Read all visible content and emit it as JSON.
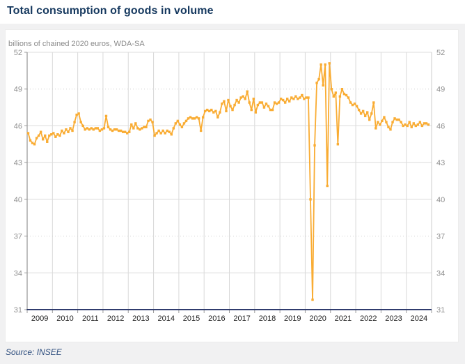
{
  "page": {
    "title": "Total consumption of goods in volume",
    "source_note": "Source: INSEE"
  },
  "colors": {
    "accent_line": "#f9ac33",
    "title_navy": "#16395f",
    "axis_navy": "#303c6e",
    "left_frame_gray": "#7f7f7f",
    "gridline_gray": "#dcdcdc",
    "tick_text_gray": "#8f8f8f",
    "background_gray": "#f1f1f2"
  },
  "chart_data": {
    "type": "line",
    "title": "Total consumption of goods in volume",
    "subtitle": "billions of chained 2020 euros, WDA-SA",
    "source": "Source: INSEE",
    "frequency": "monthly",
    "x_start": "2009-01",
    "x_end": "2024-11",
    "x_tick_labels": [
      "2009",
      "2010",
      "2011",
      "2012",
      "2013",
      "2014",
      "2015",
      "2016",
      "2017",
      "2018",
      "2019",
      "2020",
      "2021",
      "2022",
      "2023",
      "2024"
    ],
    "y_ticks": [
      31,
      34,
      37,
      40,
      43,
      46,
      49,
      52
    ],
    "ylim": [
      31,
      52
    ],
    "grid": true,
    "grid_dotted_levels": [
      49,
      37
    ],
    "legend_position": "none",
    "marker": "square",
    "series": [
      {
        "name": "Total consumption of goods in volume",
        "color": "#f9ac33",
        "values": [
          45.4,
          44.8,
          44.6,
          44.5,
          45.0,
          45.2,
          45.5,
          44.9,
          45.2,
          44.7,
          45.2,
          45.3,
          45.4,
          45.1,
          45.3,
          45.2,
          45.6,
          45.4,
          45.7,
          45.5,
          45.8,
          45.6,
          46.3,
          46.9,
          47.0,
          46.3,
          46.0,
          45.7,
          45.8,
          45.7,
          45.8,
          45.7,
          45.8,
          45.8,
          45.6,
          45.7,
          45.8,
          46.8,
          45.9,
          45.7,
          45.6,
          45.7,
          45.7,
          45.6,
          45.6,
          45.5,
          45.5,
          45.4,
          45.5,
          46.1,
          45.8,
          46.2,
          45.8,
          45.7,
          45.8,
          45.9,
          45.9,
          46.4,
          46.5,
          46.3,
          45.2,
          45.4,
          45.6,
          45.4,
          45.6,
          45.4,
          45.6,
          45.5,
          45.3,
          45.8,
          46.2,
          46.4,
          46.1,
          45.9,
          46.2,
          46.4,
          46.6,
          46.7,
          46.6,
          46.6,
          46.7,
          46.6,
          45.6,
          46.7,
          47.2,
          47.3,
          47.2,
          47.3,
          47.1,
          47.2,
          46.7,
          47.1,
          47.8,
          48.0,
          47.2,
          48.1,
          47.6,
          47.3,
          47.7,
          48.1,
          47.9,
          48.3,
          48.4,
          48.2,
          48.8,
          47.9,
          47.3,
          48.2,
          47.1,
          47.7,
          47.9,
          47.9,
          47.5,
          47.8,
          47.6,
          47.3,
          47.3,
          47.9,
          47.8,
          47.9,
          48.2,
          48.1,
          47.9,
          48.2,
          48.0,
          48.3,
          48.2,
          48.4,
          48.2,
          48.3,
          48.5,
          48.2,
          48.3,
          48.3,
          40.0,
          31.8,
          44.4,
          49.5,
          49.8,
          51.0,
          49.3,
          51.0,
          41.1,
          51.1,
          49.0,
          48.4,
          48.7,
          44.5,
          48.4,
          49.0,
          48.6,
          48.5,
          48.3,
          47.9,
          47.7,
          47.8,
          47.6,
          47.3,
          47.0,
          47.2,
          46.8,
          47.1,
          46.5,
          47.0,
          47.9,
          45.8,
          46.3,
          46.1,
          46.4,
          46.7,
          46.3,
          45.9,
          45.7,
          46.3,
          46.6,
          46.5,
          46.5,
          46.3,
          46.0,
          46.1,
          46.0,
          46.3,
          45.9,
          46.2,
          46.0,
          46.1,
          46.3,
          46.0,
          46.2,
          46.2,
          46.1
        ]
      }
    ]
  }
}
